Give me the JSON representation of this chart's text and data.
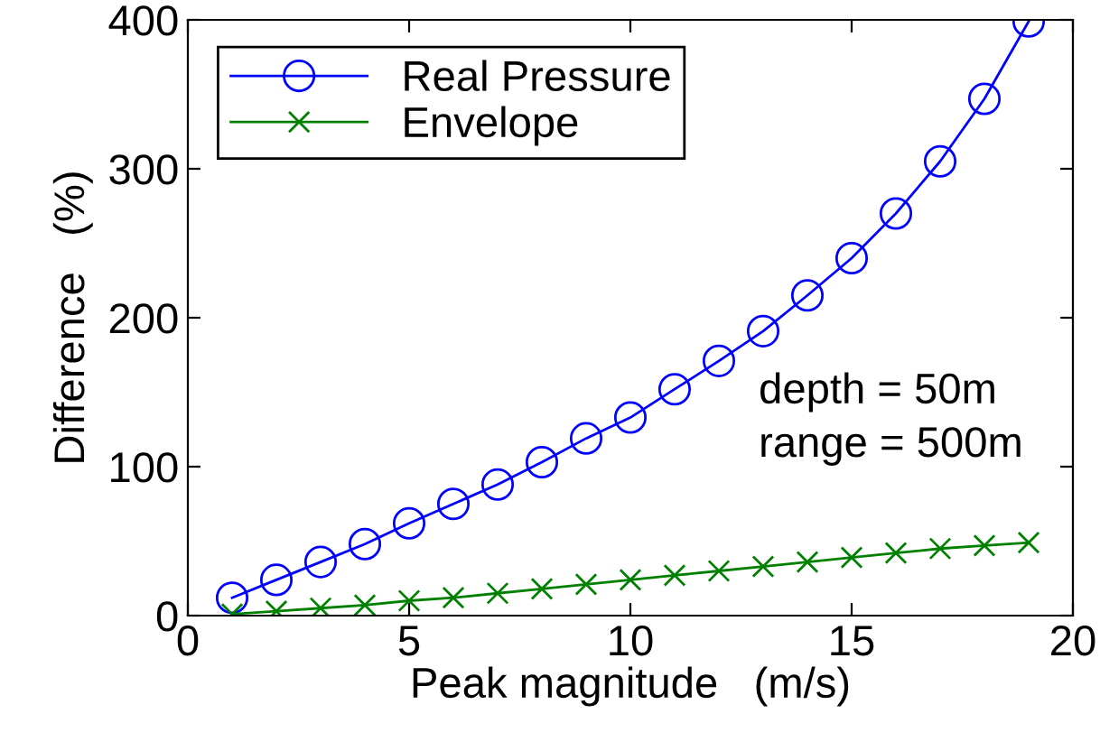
{
  "chart_data": {
    "type": "line",
    "xlabel": "Peak magnitude   (m/s)",
    "ylabel": "Difference   (%)",
    "x": [
      1,
      2,
      3,
      4,
      5,
      6,
      7,
      8,
      9,
      10,
      11,
      12,
      13,
      14,
      15,
      16,
      17,
      18,
      19
    ],
    "series": [
      {
        "name": "Real Pressure",
        "color": "#0000ff",
        "marker": "circle",
        "values": [
          12,
          24,
          36,
          48,
          62,
          75,
          88,
          103,
          119,
          133,
          152,
          171,
          191,
          215,
          240,
          270,
          305,
          347,
          399
        ]
      },
      {
        "name": "Envelope",
        "color": "#008000",
        "marker": "cross",
        "values": [
          1,
          3,
          5,
          7,
          10,
          12,
          15,
          18,
          21,
          24,
          27,
          30,
          33,
          36,
          39,
          42,
          45,
          47,
          49
        ]
      }
    ],
    "xlim": [
      0,
      20
    ],
    "xticks": [
      0,
      5,
      10,
      15,
      20
    ],
    "ylim": [
      0,
      400
    ],
    "yticks": [
      0,
      100,
      200,
      300,
      400
    ],
    "grid": false,
    "legend": "top left",
    "line_style": "solid",
    "annotations": [
      "depth = 50m",
      "range = 500m"
    ]
  }
}
